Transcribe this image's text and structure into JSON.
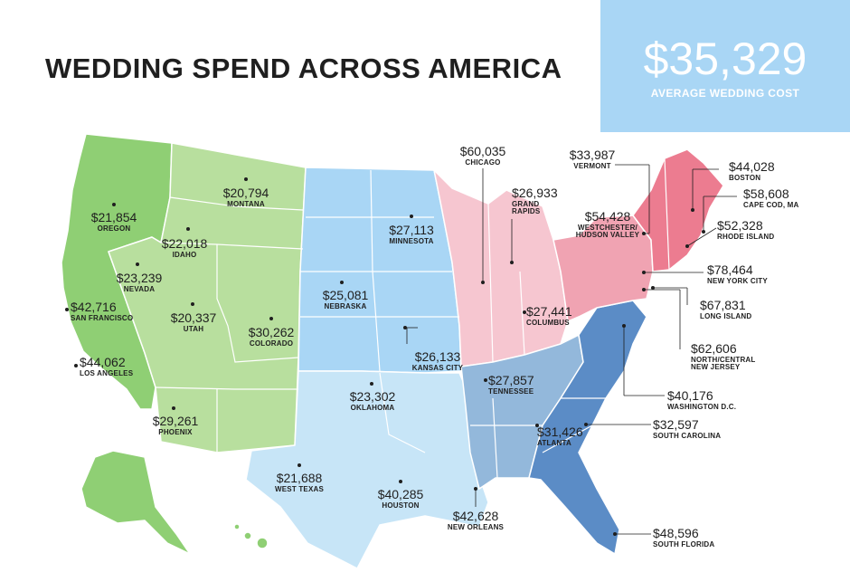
{
  "title": "WEDDING SPEND ACROSS AMERICA",
  "average": {
    "value": "$35,329",
    "label": "AVERAGE WEDDING COST"
  },
  "colors": {
    "west_green_dark": "#8fcf74",
    "west_green_light": "#b8df9e",
    "central_blue_light": "#a9d6f5",
    "south_blue_pale": "#c7e5f7",
    "southeast_blue_mid": "#93b8db",
    "southeast_blue_dark": "#5b8cc6",
    "midwest_pink_light": "#f6c6d0",
    "northeast_pink": "#f0a3b2",
    "northeast_pink_dark": "#ec7c90"
  },
  "cities": [
    {
      "price": "$21,854",
      "name": "OREGON"
    },
    {
      "price": "$22,018",
      "name": "IDAHO"
    },
    {
      "price": "$20,794",
      "name": "MONTANA"
    },
    {
      "price": "$23,239",
      "name": "NEVADA"
    },
    {
      "price": "$42,716",
      "name": "SAN FRANCISCO"
    },
    {
      "price": "$20,337",
      "name": "UTAH"
    },
    {
      "price": "$30,262",
      "name": "COLORADO"
    },
    {
      "price": "$44,062",
      "name": "LOS ANGELES"
    },
    {
      "price": "$29,261",
      "name": "PHOENIX"
    },
    {
      "price": "$27,113",
      "name": "MINNESOTA"
    },
    {
      "price": "$25,081",
      "name": "NEBRASKA"
    },
    {
      "price": "$26,133",
      "name": "KANSAS CITY"
    },
    {
      "price": "$23,302",
      "name": "OKLAHOMA"
    },
    {
      "price": "$21,688",
      "name": "WEST TEXAS"
    },
    {
      "price": "$40,285",
      "name": "HOUSTON"
    },
    {
      "price": "$42,628",
      "name": "NEW ORLEANS"
    },
    {
      "price": "$60,035",
      "name": "CHICAGO"
    },
    {
      "price": "$26,933",
      "name": "GRAND RAPIDS"
    },
    {
      "price": "$27,441",
      "name": "COLUMBUS"
    },
    {
      "price": "$27,857",
      "name": "TENNESSEE"
    },
    {
      "price": "$31,426",
      "name": "ATLANTA"
    },
    {
      "price": "$33,987",
      "name": "VERMONT"
    },
    {
      "price": "$54,428",
      "name": "WESTCHESTER/ HUDSON VALLEY"
    },
    {
      "price": "$44,028",
      "name": "BOSTON"
    },
    {
      "price": "$58,608",
      "name": "CAPE COD, MA"
    },
    {
      "price": "$52,328",
      "name": "RHODE ISLAND"
    },
    {
      "price": "$78,464",
      "name": "NEW YORK CITY"
    },
    {
      "price": "$67,831",
      "name": "LONG ISLAND"
    },
    {
      "price": "$62,606",
      "name": "NORTH/CENTRAL NEW JERSEY"
    },
    {
      "price": "$40,176",
      "name": "WASHINGTON D.C."
    },
    {
      "price": "$32,597",
      "name": "SOUTH CAROLINA"
    },
    {
      "price": "$48,596",
      "name": "SOUTH FLORIDA"
    }
  ]
}
